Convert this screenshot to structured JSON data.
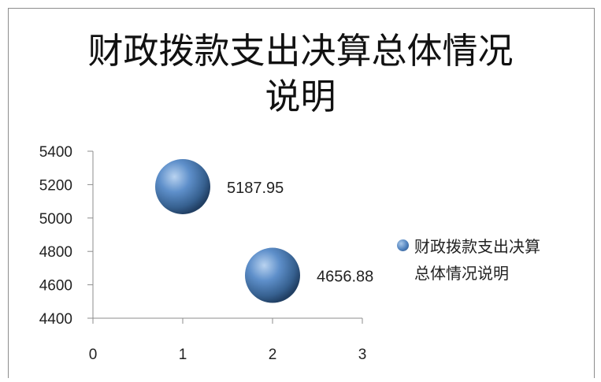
{
  "chart_data": {
    "type": "bubble",
    "title": "财政拨款支出决算总体情况说明",
    "title_lines": [
      "财政拨款支出决算总体情况",
      "说明"
    ],
    "xlim": [
      0,
      3
    ],
    "ylim": [
      4400,
      5400
    ],
    "x_ticks": [
      "0",
      "1",
      "2",
      "3"
    ],
    "y_ticks": [
      "5400",
      "5200",
      "5000",
      "4800",
      "4600",
      "4400"
    ],
    "series": [
      {
        "name": "财政拨款支出决算总体情况说明",
        "color": "#4f81bd",
        "points": [
          {
            "x": 1,
            "y": 5187.95,
            "label": "5187.95"
          },
          {
            "x": 2,
            "y": 4656.88,
            "label": "4656.88"
          }
        ]
      }
    ],
    "legend_position": "right",
    "legend_lines": [
      "财政拨款支出决算",
      "总体情况说明"
    ],
    "grid": false
  }
}
